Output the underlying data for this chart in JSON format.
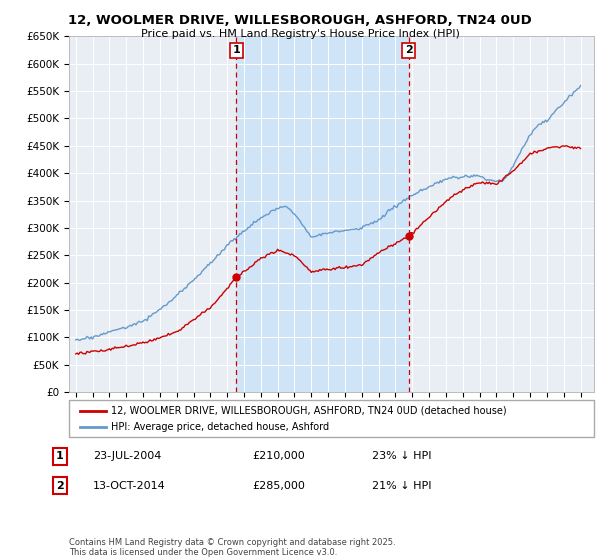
{
  "title": "12, WOOLMER DRIVE, WILLESBOROUGH, ASHFORD, TN24 0UD",
  "subtitle": "Price paid vs. HM Land Registry's House Price Index (HPI)",
  "ylim": [
    0,
    650000
  ],
  "yticks": [
    0,
    50000,
    100000,
    150000,
    200000,
    250000,
    300000,
    350000,
    400000,
    450000,
    500000,
    550000,
    600000,
    650000
  ],
  "ytick_labels": [
    "£0",
    "£50K",
    "£100K",
    "£150K",
    "£200K",
    "£250K",
    "£300K",
    "£350K",
    "£400K",
    "£450K",
    "£500K",
    "£550K",
    "£600K",
    "£650K"
  ],
  "xlim_start": 1994.6,
  "xlim_end": 2025.8,
  "sale1_x": 2004.55,
  "sale1_y": 210000,
  "sale1_label": "1",
  "sale1_date": "23-JUL-2004",
  "sale1_price": "£210,000",
  "sale1_hpi": "23% ↓ HPI",
  "sale2_x": 2014.78,
  "sale2_y": 285000,
  "sale2_label": "2",
  "sale2_date": "13-OCT-2014",
  "sale2_price": "£285,000",
  "sale2_hpi": "21% ↓ HPI",
  "legend_line1": "12, WOOLMER DRIVE, WILLESBOROUGH, ASHFORD, TN24 0UD (detached house)",
  "legend_line2": "HPI: Average price, detached house, Ashford",
  "footer": "Contains HM Land Registry data © Crown copyright and database right 2025.\nThis data is licensed under the Open Government Licence v3.0.",
  "red_color": "#cc0000",
  "blue_color": "#6699cc",
  "shade_color": "#d0e4f7",
  "background_color": "#ffffff",
  "plot_bg_color": "#e8eef4"
}
